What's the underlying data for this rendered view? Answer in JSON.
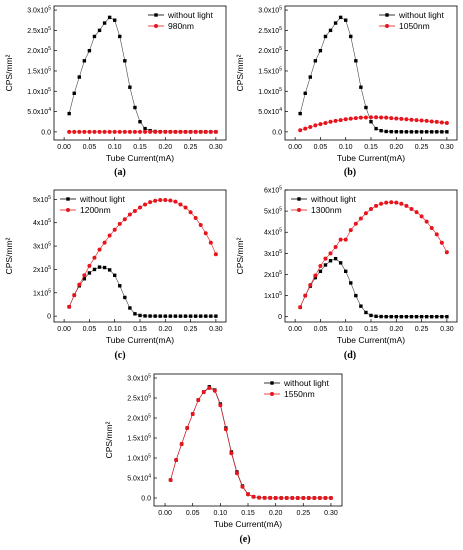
{
  "colors": {
    "dark": "#000000",
    "red": "#e8141c",
    "line": "#555555"
  },
  "chart_data": [
    {
      "type": "line",
      "panel": "(a)",
      "xlabel": "Tube Current(mA)",
      "ylabel": "CPS/mm²",
      "xlim": [
        -0.02,
        0.32
      ],
      "ylim": [
        -20000,
        310000
      ],
      "xticks": [
        "0.00",
        "0.05",
        "0.10",
        "0.15",
        "0.20",
        "0.25",
        "0.30"
      ],
      "yticks": [
        {
          "v": 0,
          "m": "0.0",
          "e": ""
        },
        {
          "v": 50000,
          "m": "5.0x10",
          "e": "4"
        },
        {
          "v": 100000,
          "m": "1.0x10",
          "e": "5"
        },
        {
          "v": 150000,
          "m": "1.5x10",
          "e": "5"
        },
        {
          "v": 200000,
          "m": "2.0x10",
          "e": "5"
        },
        {
          "v": 250000,
          "m": "2.5x10",
          "e": "5"
        },
        {
          "v": 300000,
          "m": "3.0x10",
          "e": "5"
        }
      ],
      "legend": "top-right",
      "x": [
        0.01,
        0.02,
        0.03,
        0.04,
        0.05,
        0.06,
        0.07,
        0.08,
        0.09,
        0.1,
        0.11,
        0.12,
        0.13,
        0.14,
        0.15,
        0.16,
        0.17,
        0.18,
        0.19,
        0.2,
        0.21,
        0.22,
        0.23,
        0.24,
        0.25,
        0.26,
        0.27,
        0.28,
        0.29,
        0.3
      ],
      "series": [
        {
          "name": "without light",
          "marker": "square",
          "color": "#000000",
          "values": [
            45000,
            95000,
            135000,
            175000,
            200000,
            235000,
            250000,
            268000,
            282000,
            275000,
            235000,
            175000,
            110000,
            60000,
            25000,
            8000,
            3000,
            1000,
            500,
            300,
            200,
            100,
            100,
            100,
            100,
            100,
            100,
            100,
            100,
            100
          ]
        },
        {
          "name": "980nm",
          "marker": "circle",
          "color": "#e8141c",
          "values": [
            0,
            0,
            0,
            0,
            0,
            0,
            0,
            0,
            0,
            0,
            0,
            0,
            0,
            0,
            0,
            0,
            0,
            0,
            0,
            0,
            0,
            0,
            0,
            0,
            0,
            0,
            0,
            0,
            0,
            0
          ]
        }
      ]
    },
    {
      "type": "line",
      "panel": "(b)",
      "xlabel": "Tube Current(mA)",
      "ylabel": "CPS/mm²",
      "xlim": [
        -0.02,
        0.32
      ],
      "ylim": [
        -20000,
        310000
      ],
      "xticks": [
        "0.00",
        "0.05",
        "0.10",
        "0.15",
        "0.20",
        "0.25",
        "0.30"
      ],
      "yticks": [
        {
          "v": 0,
          "m": "0.0",
          "e": ""
        },
        {
          "v": 50000,
          "m": "5.0x10",
          "e": "4"
        },
        {
          "v": 100000,
          "m": "1.0x10",
          "e": "5"
        },
        {
          "v": 150000,
          "m": "1.5x10",
          "e": "5"
        },
        {
          "v": 200000,
          "m": "2.0x10",
          "e": "5"
        },
        {
          "v": 250000,
          "m": "2.5x10",
          "e": "5"
        },
        {
          "v": 300000,
          "m": "3.0x10",
          "e": "5"
        }
      ],
      "legend": "top-right",
      "x": [
        0.01,
        0.02,
        0.03,
        0.04,
        0.05,
        0.06,
        0.07,
        0.08,
        0.09,
        0.1,
        0.11,
        0.12,
        0.13,
        0.14,
        0.15,
        0.16,
        0.17,
        0.18,
        0.19,
        0.2,
        0.21,
        0.22,
        0.23,
        0.24,
        0.25,
        0.26,
        0.27,
        0.28,
        0.29,
        0.3
      ],
      "series": [
        {
          "name": "without light",
          "marker": "square",
          "color": "#000000",
          "values": [
            45000,
            95000,
            135000,
            175000,
            200000,
            235000,
            250000,
            268000,
            282000,
            275000,
            235000,
            175000,
            110000,
            60000,
            25000,
            8000,
            3000,
            1000,
            500,
            300,
            200,
            100,
            100,
            100,
            100,
            100,
            100,
            100,
            100,
            100
          ]
        },
        {
          "name": "1050nm",
          "marker": "circle",
          "color": "#e8141c",
          "values": [
            4000,
            8000,
            12000,
            16000,
            19000,
            22000,
            25000,
            27000,
            29000,
            31000,
            32500,
            34000,
            35000,
            35500,
            36000,
            36000,
            35500,
            35000,
            34000,
            33000,
            32000,
            31000,
            30000,
            29000,
            28000,
            27000,
            25500,
            24500,
            23000,
            22000
          ]
        }
      ]
    },
    {
      "type": "line",
      "panel": "(c)",
      "xlabel": "Tube Current(mA)",
      "ylabel": "CPS/mm²",
      "xlim": [
        -0.02,
        0.32
      ],
      "ylim": [
        -25000,
        540000
      ],
      "xticks": [
        "0.00",
        "0.05",
        "0.10",
        "0.15",
        "0.20",
        "0.25",
        "0.30"
      ],
      "yticks": [
        {
          "v": 0,
          "m": "0",
          "e": ""
        },
        {
          "v": 100000,
          "m": "1x10",
          "e": "5"
        },
        {
          "v": 200000,
          "m": "2x10",
          "e": "5"
        },
        {
          "v": 300000,
          "m": "3x10",
          "e": "5"
        },
        {
          "v": 400000,
          "m": "4x10",
          "e": "5"
        },
        {
          "v": 500000,
          "m": "5x10",
          "e": "5"
        }
      ],
      "legend": "top-left",
      "x": [
        0.01,
        0.02,
        0.03,
        0.04,
        0.05,
        0.06,
        0.07,
        0.08,
        0.09,
        0.1,
        0.11,
        0.12,
        0.13,
        0.14,
        0.15,
        0.16,
        0.17,
        0.18,
        0.19,
        0.2,
        0.21,
        0.22,
        0.23,
        0.24,
        0.25,
        0.26,
        0.27,
        0.28,
        0.29,
        0.3
      ],
      "series": [
        {
          "name": "without light",
          "marker": "square",
          "color": "#000000",
          "values": [
            40000,
            90000,
            130000,
            160000,
            185000,
            200000,
            210000,
            208000,
            198000,
            175000,
            130000,
            80000,
            35000,
            10000,
            3000,
            1000,
            500,
            300,
            200,
            100,
            100,
            100,
            100,
            100,
            100,
            100,
            100,
            100,
            100,
            100
          ]
        },
        {
          "name": "1200nm",
          "marker": "circle",
          "color": "#e8141c",
          "values": [
            40000,
            90000,
            135000,
            175000,
            215000,
            250000,
            285000,
            315000,
            345000,
            370000,
            395000,
            415000,
            435000,
            450000,
            465000,
            478000,
            488000,
            494000,
            497000,
            497000,
            495000,
            490000,
            478000,
            465000,
            445000,
            420000,
            390000,
            355000,
            315000,
            265000
          ]
        }
      ]
    },
    {
      "type": "line",
      "panel": "(d)",
      "xlabel": "Tube Current(mA)",
      "ylabel": "CPS/mm²",
      "xlim": [
        -0.02,
        0.32
      ],
      "ylim": [
        -25000,
        600000
      ],
      "xticks": [
        "0.00",
        "0.05",
        "0.10",
        "0.15",
        "0.20",
        "0.25",
        "0.30"
      ],
      "yticks": [
        {
          "v": 0,
          "m": "0",
          "e": ""
        },
        {
          "v": 100000,
          "m": "1x10",
          "e": "5"
        },
        {
          "v": 200000,
          "m": "2x10",
          "e": "5"
        },
        {
          "v": 300000,
          "m": "3x10",
          "e": "5"
        },
        {
          "v": 400000,
          "m": "4x10",
          "e": "5"
        },
        {
          "v": 500000,
          "m": "5x10",
          "e": "5"
        },
        {
          "v": 600000,
          "m": "6x10",
          "e": "5"
        }
      ],
      "legend": "top-left",
      "x": [
        0.01,
        0.02,
        0.03,
        0.04,
        0.05,
        0.06,
        0.07,
        0.08,
        0.09,
        0.1,
        0.11,
        0.12,
        0.13,
        0.14,
        0.15,
        0.16,
        0.17,
        0.18,
        0.19,
        0.2,
        0.21,
        0.22,
        0.23,
        0.24,
        0.25,
        0.26,
        0.27,
        0.28,
        0.29,
        0.3
      ],
      "series": [
        {
          "name": "without light",
          "marker": "square",
          "color": "#000000",
          "values": [
            45000,
            100000,
            145000,
            185000,
            215000,
            245000,
            265000,
            275000,
            255000,
            215000,
            160000,
            100000,
            50000,
            20000,
            6000,
            2000,
            800,
            300,
            200,
            100,
            100,
            100,
            100,
            100,
            100,
            100,
            100,
            100,
            100,
            100
          ]
        },
        {
          "name": "1300nm",
          "marker": "circle",
          "color": "#e8141c",
          "values": [
            45000,
            100000,
            150000,
            195000,
            240000,
            275000,
            300000,
            330000,
            365000,
            365000,
            410000,
            440000,
            465000,
            490000,
            510000,
            525000,
            535000,
            540000,
            542000,
            540000,
            535000,
            525000,
            510000,
            495000,
            475000,
            450000,
            420000,
            390000,
            350000,
            305000
          ]
        }
      ]
    },
    {
      "type": "line",
      "panel": "(e)",
      "xlabel": "Tube Current(mA)",
      "ylabel": "CPS/mm²",
      "xlim": [
        -0.02,
        0.32
      ],
      "ylim": [
        -20000,
        310000
      ],
      "xticks": [
        "0.00",
        "0.05",
        "0.10",
        "0.15",
        "0.20",
        "0.25",
        "0.30"
      ],
      "yticks": [
        {
          "v": 0,
          "m": "0.0",
          "e": ""
        },
        {
          "v": 50000,
          "m": "5.0x10",
          "e": "4"
        },
        {
          "v": 100000,
          "m": "1.0x10",
          "e": "5"
        },
        {
          "v": 150000,
          "m": "1.5x10",
          "e": "5"
        },
        {
          "v": 200000,
          "m": "2.0x10",
          "e": "5"
        },
        {
          "v": 250000,
          "m": "2.5x10",
          "e": "5"
        },
        {
          "v": 300000,
          "m": "3.0x10",
          "e": "5"
        }
      ],
      "legend": "top-right",
      "x": [
        0.01,
        0.02,
        0.03,
        0.04,
        0.05,
        0.06,
        0.07,
        0.08,
        0.09,
        0.1,
        0.11,
        0.12,
        0.13,
        0.14,
        0.15,
        0.16,
        0.17,
        0.18,
        0.19,
        0.2,
        0.21,
        0.22,
        0.23,
        0.24,
        0.25,
        0.26,
        0.27,
        0.28,
        0.29,
        0.3
      ],
      "series": [
        {
          "name": "without light",
          "marker": "square",
          "color": "#000000",
          "values": [
            45000,
            95000,
            135000,
            175000,
            210000,
            245000,
            265000,
            278000,
            270000,
            235000,
            175000,
            115000,
            65000,
            30000,
            10000,
            3000,
            1000,
            400,
            200,
            100,
            100,
            100,
            100,
            100,
            100,
            100,
            100,
            100,
            100,
            100
          ]
        },
        {
          "name": "1550nm",
          "marker": "circle",
          "color": "#e8141c",
          "values": [
            45000,
            95000,
            135000,
            175000,
            210000,
            245000,
            265000,
            275000,
            268000,
            232000,
            172000,
            112000,
            62000,
            28000,
            9000,
            3000,
            1000,
            400,
            200,
            100,
            100,
            100,
            100,
            100,
            100,
            100,
            100,
            100,
            100,
            100
          ]
        }
      ]
    }
  ]
}
